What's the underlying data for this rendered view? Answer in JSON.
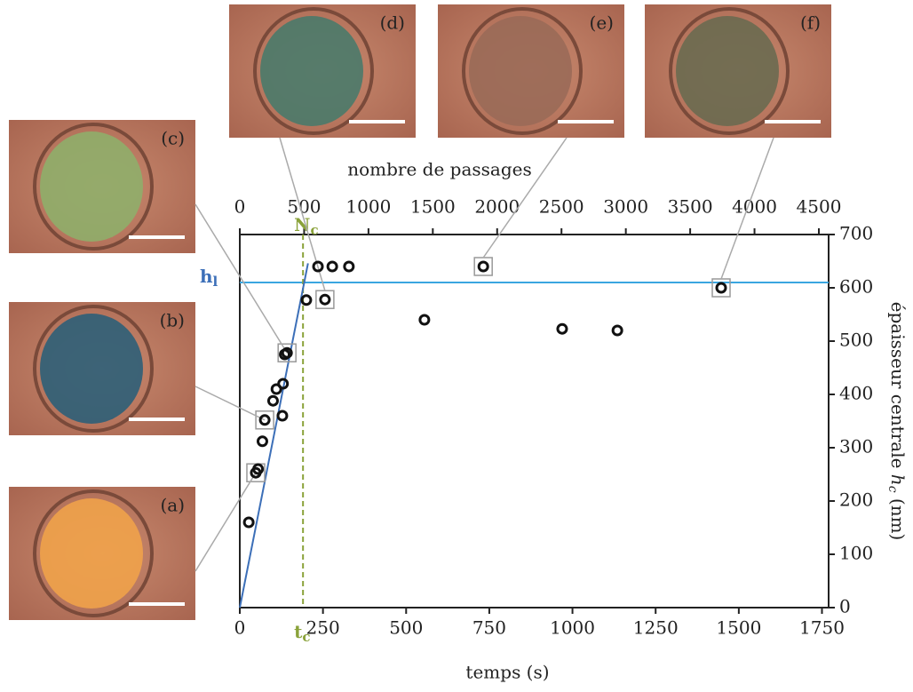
{
  "chart_data": {
    "type": "scatter",
    "xlabel": "temps (s)",
    "x2label": "nombre de passages",
    "ylabel": {
      "text": "épaisseur centrale ",
      "var": "h",
      "sub": "c",
      "unit": " (nm)"
    },
    "x": [
      27,
      48,
      55,
      68,
      75,
      100,
      110,
      128,
      130,
      135,
      142,
      200,
      235,
      256,
      278,
      328,
      555,
      732,
      969,
      1135,
      1447
    ],
    "values": [
      160,
      253,
      260,
      312,
      352,
      388,
      410,
      360,
      420,
      475,
      478,
      577,
      640,
      578,
      640,
      640,
      540,
      640,
      523,
      520,
      600
    ],
    "xlim": [
      0,
      1770
    ],
    "xticks": [
      0,
      250,
      500,
      750,
      1000,
      1250,
      1500,
      1750
    ],
    "x2lim": [
      0,
      4576
    ],
    "x2ticks": [
      0,
      500,
      1000,
      1500,
      2000,
      2500,
      3000,
      3500,
      4000,
      4500
    ],
    "ylim": [
      0,
      700
    ],
    "yticks": [
      0,
      100,
      200,
      300,
      400,
      500,
      600,
      700
    ],
    "hl": {
      "value": 610,
      "label": "h",
      "sub": "l",
      "color": "#3aa6e0"
    },
    "tc": {
      "value": 190,
      "label": "t",
      "sub": "c",
      "top_label": "N",
      "top_sub": "c",
      "color": "#8aa23a"
    },
    "fit": {
      "x": [
        0,
        205
      ],
      "values": [
        0,
        646
      ],
      "color": "#3c6fb8"
    },
    "insets": [
      "(a)",
      "(b)",
      "(c)",
      "(d)",
      "(e)",
      "(f)"
    ]
  }
}
